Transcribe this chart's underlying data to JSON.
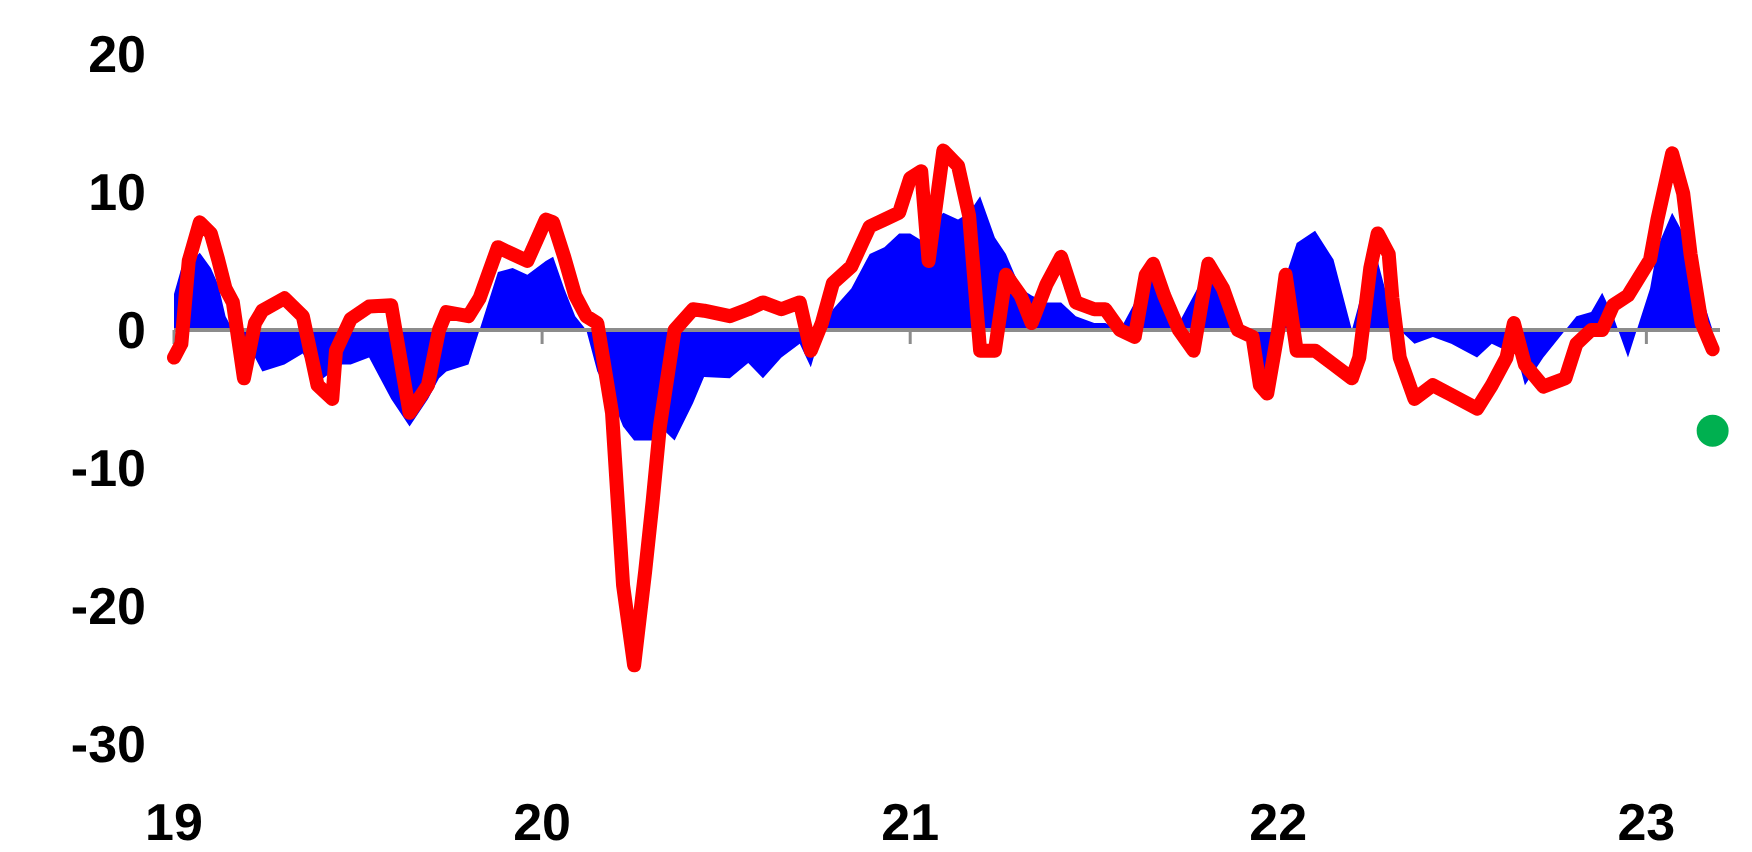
{
  "chart_data": {
    "type": "line",
    "x": [
      2019.0,
      2019.02,
      2019.04,
      2019.07,
      2019.1,
      2019.12,
      2019.14,
      2019.16,
      2019.19,
      2019.22,
      2019.24,
      2019.3,
      2019.35,
      2019.39,
      2019.43,
      2019.44,
      2019.48,
      2019.53,
      2019.59,
      2019.64,
      2019.69,
      2019.72,
      2019.74,
      2019.8,
      2019.83,
      2019.88,
      2019.92,
      2019.96,
      2020.01,
      2020.03,
      2020.06,
      2020.09,
      2020.12,
      2020.15,
      2020.19,
      2020.22,
      2020.25,
      2020.28,
      2020.3,
      2020.32,
      2020.36,
      2020.41,
      2020.44,
      2020.51,
      2020.56,
      2020.6,
      2020.65,
      2020.7,
      2020.73,
      2020.76,
      2020.79,
      2020.84,
      2020.89,
      2020.93,
      2020.97,
      2021.0,
      2021.03,
      2021.05,
      2021.09,
      2021.13,
      2021.16,
      2021.19,
      2021.23,
      2021.26,
      2021.3,
      2021.33,
      2021.37,
      2021.41,
      2021.45,
      2021.5,
      2021.53,
      2021.57,
      2021.61,
      2021.64,
      2021.66,
      2021.69,
      2021.73,
      2021.77,
      2021.81,
      2021.85,
      2021.89,
      2021.93,
      2021.95,
      2021.97,
      2022.0,
      2022.02,
      2022.05,
      2022.1,
      2022.15,
      2022.2,
      2022.22,
      2022.25,
      2022.27,
      2022.3,
      2022.31,
      2022.33,
      2022.37,
      2022.42,
      2022.47,
      2022.54,
      2022.58,
      2022.62,
      2022.64,
      2022.67,
      2022.72,
      2022.78,
      2022.81,
      2022.85,
      2022.88,
      2022.91,
      2022.95,
      2023.01,
      2023.03,
      2023.07,
      2023.1,
      2023.12,
      2023.15,
      2023.18
    ],
    "series": [
      {
        "type": "area",
        "color": "#0000ff",
        "values": [
          2.6,
          4.5,
          4.8,
          5.6,
          4.5,
          3.3,
          1,
          0,
          -1,
          -2,
          -3,
          -2.5,
          -1.7,
          -3.8,
          -3,
          -2.5,
          -2.5,
          -2,
          -5,
          -7,
          -5,
          -3.5,
          -3,
          -2.5,
          0,
          4.2,
          4.5,
          4,
          5,
          5.3,
          3,
          1,
          0,
          -3,
          -5,
          -7,
          -8,
          -8,
          -8,
          -7,
          -8,
          -5.3,
          -3.4,
          -3.5,
          -2.4,
          -3.5,
          -2,
          -1,
          -2.7,
          0,
          1.5,
          3,
          5.5,
          6,
          7,
          7,
          6.5,
          7.5,
          8.5,
          8,
          8.5,
          9.7,
          6.7,
          5.5,
          3,
          2.5,
          2,
          2,
          1,
          0.5,
          0.5,
          0,
          2,
          4.2,
          4.5,
          3,
          0.5,
          2.5,
          4.5,
          3,
          1,
          -2,
          -4,
          -4.5,
          -2.5,
          3.9,
          6.3,
          7.2,
          5.1,
          0,
          2,
          4.5,
          5,
          2,
          0,
          0,
          -1,
          -0.5,
          -1,
          -2,
          -1,
          -1.5,
          -1,
          -4,
          -2,
          0,
          1,
          1.3,
          2.7,
          1,
          -2,
          3,
          6,
          8.5,
          7,
          4.5,
          2.5,
          0
        ]
      },
      {
        "color": "#ff0000",
        "values": [
          -2,
          -1,
          5,
          7.8,
          7,
          5.1,
          3,
          2,
          -3.5,
          0.5,
          1.4,
          2.3,
          1,
          -4,
          -5,
          -1.5,
          0.8,
          1.7,
          1.8,
          -6,
          -4,
          0,
          1.3,
          1,
          2.3,
          6,
          5.5,
          5,
          8,
          7.8,
          5.3,
          2.5,
          1,
          0.5,
          -6,
          -18.5,
          -24.3,
          -17.5,
          -12.5,
          -7,
          0,
          1.5,
          1.4,
          1,
          1.5,
          2,
          1.5,
          2,
          -1.5,
          0.5,
          3.4,
          4.6,
          7.5,
          8,
          8.5,
          11,
          11.5,
          5,
          13,
          11.9,
          8.3,
          -1.5,
          -1.5,
          4,
          2.5,
          0.5,
          3.3,
          5.3,
          2,
          1.5,
          1.5,
          0,
          -0.5,
          4,
          4.8,
          2.5,
          0,
          -1.5,
          4.8,
          3,
          0,
          -0.5,
          -4,
          -4.6,
          0,
          4,
          -1.5,
          -1.5,
          -2.5,
          -3.5,
          -2,
          4.5,
          7,
          5.5,
          2.3,
          -2,
          -5,
          -4,
          -4.7,
          -5.7,
          -4,
          -2,
          0.5,
          -2.5,
          -4.1,
          -3.5,
          -1,
          0,
          0,
          1.8,
          2.5,
          5.1,
          8,
          12.8,
          9.9,
          5.5,
          0.5,
          -1.4
        ]
      },
      {
        "type": "scatter",
        "color": "#00b050",
        "x": [
          2023.18
        ],
        "values": [
          -7.3
        ]
      }
    ],
    "xlim": [
      2019,
      2023.2
    ],
    "xticks": [
      {
        "value": 2019,
        "label": "19"
      },
      {
        "value": 2020,
        "label": "20"
      },
      {
        "value": 2021,
        "label": "21"
      },
      {
        "value": 2022,
        "label": "22"
      },
      {
        "value": 2023,
        "label": "23"
      }
    ],
    "ylim": [
      -30,
      20
    ],
    "yticks": [
      -30,
      -20,
      -10,
      0,
      10,
      20
    ],
    "line_style": "solid"
  }
}
